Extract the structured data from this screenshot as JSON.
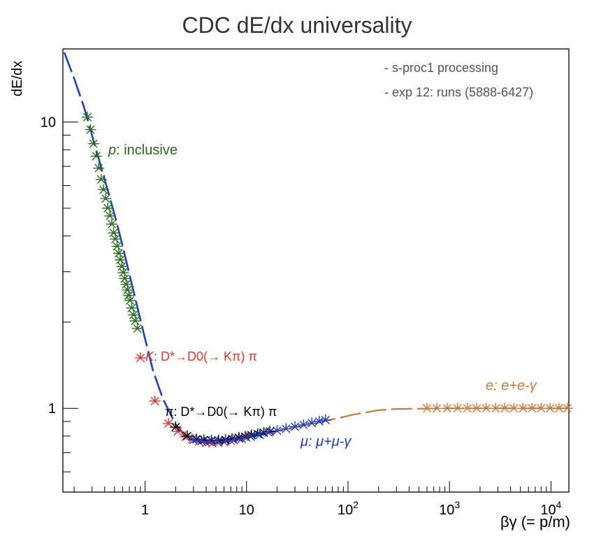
{
  "chart_data": {
    "type": "scatter",
    "title": "CDC dE/dx universality",
    "xlabel": "βγ  (= p/m)",
    "ylabel": "dE/dx",
    "x_scale": "log",
    "y_scale": "log",
    "xlim": [
      0.155,
      15000
    ],
    "ylim": [
      0.51,
      18
    ],
    "x_ticks": [
      {
        "value": 1,
        "label": "1"
      },
      {
        "value": 10,
        "label": "10"
      },
      {
        "value": 100,
        "label": "10",
        "exp": "2"
      },
      {
        "value": 1000,
        "label": "10",
        "exp": "3"
      },
      {
        "value": 10000,
        "label": "10",
        "exp": "4"
      }
    ],
    "y_ticks": [
      {
        "value": 1,
        "label": "1"
      },
      {
        "value": 10,
        "label": "10"
      }
    ],
    "notes": [
      "- s-proc1 processing",
      "- exp 12: runs (5888-6427)"
    ],
    "fit_curve": {
      "color": "#1f3fcc",
      "style": "dashed",
      "points": [
        [
          0.16,
          17.5
        ],
        [
          0.2,
          14.2
        ],
        [
          0.25,
          11.3
        ],
        [
          0.3,
          9.0
        ],
        [
          0.4,
          6.3
        ],
        [
          0.5,
          4.75
        ],
        [
          0.6,
          3.7
        ],
        [
          0.7,
          2.95
        ],
        [
          0.85,
          2.22
        ],
        [
          1.0,
          1.75
        ],
        [
          1.2,
          1.35
        ],
        [
          1.5,
          1.08
        ],
        [
          2.0,
          0.88
        ],
        [
          2.5,
          0.8
        ],
        [
          3.0,
          0.776
        ],
        [
          4.0,
          0.762
        ],
        [
          5.0,
          0.762
        ],
        [
          7.0,
          0.772
        ],
        [
          10.0,
          0.79
        ],
        [
          15.0,
          0.815
        ],
        [
          20.0,
          0.835
        ],
        [
          30.0,
          0.86
        ],
        [
          50.0,
          0.89
        ],
        [
          80.0,
          0.925
        ],
        [
          120.0,
          0.955
        ],
        [
          200.0,
          0.985
        ],
        [
          300.0,
          0.995
        ],
        [
          1000.0,
          1.0
        ],
        [
          15000.0,
          1.0
        ]
      ]
    },
    "series": [
      {
        "name": "p: inclusive",
        "color": "#2a6e1e",
        "points": [
          [
            0.27,
            10.4
          ],
          [
            0.29,
            9.4
          ],
          [
            0.31,
            8.4
          ],
          [
            0.33,
            7.6
          ],
          [
            0.35,
            6.9
          ],
          [
            0.37,
            6.3
          ],
          [
            0.39,
            5.8
          ],
          [
            0.41,
            5.4
          ],
          [
            0.43,
            5.0
          ],
          [
            0.45,
            4.7
          ],
          [
            0.47,
            4.4
          ],
          [
            0.49,
            4.1
          ],
          [
            0.51,
            3.9
          ],
          [
            0.53,
            3.68
          ],
          [
            0.55,
            3.48
          ],
          [
            0.57,
            3.3
          ],
          [
            0.59,
            3.13
          ],
          [
            0.61,
            2.98
          ],
          [
            0.63,
            2.84
          ],
          [
            0.65,
            2.71
          ],
          [
            0.67,
            2.59
          ],
          [
            0.69,
            2.48
          ],
          [
            0.71,
            2.38
          ],
          [
            0.74,
            2.24
          ],
          [
            0.77,
            2.12
          ],
          [
            0.8,
            2.02
          ],
          [
            0.84,
            1.9
          ]
        ]
      },
      {
        "name": "K: D*→D0(→ Kπ) π",
        "color": "#e03a2e",
        "points": [
          [
            0.9,
            1.5
          ],
          [
            1.25,
            1.06
          ],
          [
            1.7,
            0.885
          ],
          [
            2.1,
            0.83
          ],
          [
            2.5,
            0.795
          ],
          [
            2.9,
            0.78
          ],
          [
            3.4,
            0.765
          ],
          [
            4.0,
            0.758
          ],
          [
            4.6,
            0.755
          ],
          [
            5.3,
            0.757
          ],
          [
            6.0,
            0.762
          ],
          [
            7.0,
            0.77
          ],
          [
            8.5,
            0.782
          ],
          [
            10.0,
            0.79
          ]
        ]
      },
      {
        "name": "π: D*→D0(→ Kπ) π",
        "color": "#000000",
        "points": [
          [
            2.0,
            0.86
          ],
          [
            2.6,
            0.8
          ],
          [
            3.2,
            0.78
          ],
          [
            3.8,
            0.775
          ],
          [
            4.5,
            0.772
          ],
          [
            5.3,
            0.772
          ],
          [
            6.2,
            0.776
          ],
          [
            7.2,
            0.782
          ],
          [
            8.4,
            0.79
          ],
          [
            9.7,
            0.797
          ],
          [
            11.2,
            0.806
          ],
          [
            12.9,
            0.814
          ],
          [
            14.8,
            0.822
          ],
          [
            17.0,
            0.83
          ]
        ]
      },
      {
        "name": "μ: μ+μ-γ",
        "color": "#1e3ccc",
        "points": [
          [
            3.0,
            0.775
          ],
          [
            3.6,
            0.768
          ],
          [
            4.3,
            0.764
          ],
          [
            5.2,
            0.764
          ],
          [
            6.2,
            0.768
          ],
          [
            7.5,
            0.775
          ],
          [
            9.0,
            0.783
          ],
          [
            11.0,
            0.796
          ],
          [
            13.5,
            0.808
          ],
          [
            16.5,
            0.822
          ],
          [
            20.0,
            0.835
          ],
          [
            24.5,
            0.848
          ],
          [
            30.0,
            0.862
          ],
          [
            36.5,
            0.875
          ],
          [
            44.0,
            0.888
          ],
          [
            52.0,
            0.9
          ],
          [
            60.0,
            0.91
          ]
        ]
      },
      {
        "name": "e: e+e-γ",
        "color": "#c87a3a",
        "points": [
          [
            600,
            1.0
          ],
          [
            750,
            1.0
          ],
          [
            950,
            1.0
          ],
          [
            1200,
            1.0
          ],
          [
            1500,
            1.0
          ],
          [
            1850,
            1.0
          ],
          [
            2300,
            1.0
          ],
          [
            2850,
            1.0
          ],
          [
            3500,
            1.0
          ],
          [
            4300,
            1.0
          ],
          [
            5300,
            1.0
          ],
          [
            6500,
            1.0
          ],
          [
            8000,
            1.0
          ],
          [
            9800,
            1.0
          ],
          [
            12000,
            1.0
          ],
          [
            14500,
            1.0
          ]
        ]
      }
    ],
    "annotations": [
      {
        "name": "proton-label",
        "particle": "p",
        "rest": ": inclusive",
        "color": "#2a6e1e"
      },
      {
        "name": "kaon-label",
        "particle": "K",
        "rest": ": D*→D0(→ Kπ) π",
        "color": "#e03a2e"
      },
      {
        "name": "pion-label",
        "particle": "π",
        "rest": ": D*→D0(→ Kπ) π",
        "color": "#000000"
      },
      {
        "name": "muon-label",
        "particle": "μ",
        "rest": ": μ+μ-γ",
        "color": "#1e3ccc"
      },
      {
        "name": "electron-label",
        "particle": "e",
        "rest": ": e+e-γ",
        "color": "#c87a3a"
      }
    ]
  }
}
